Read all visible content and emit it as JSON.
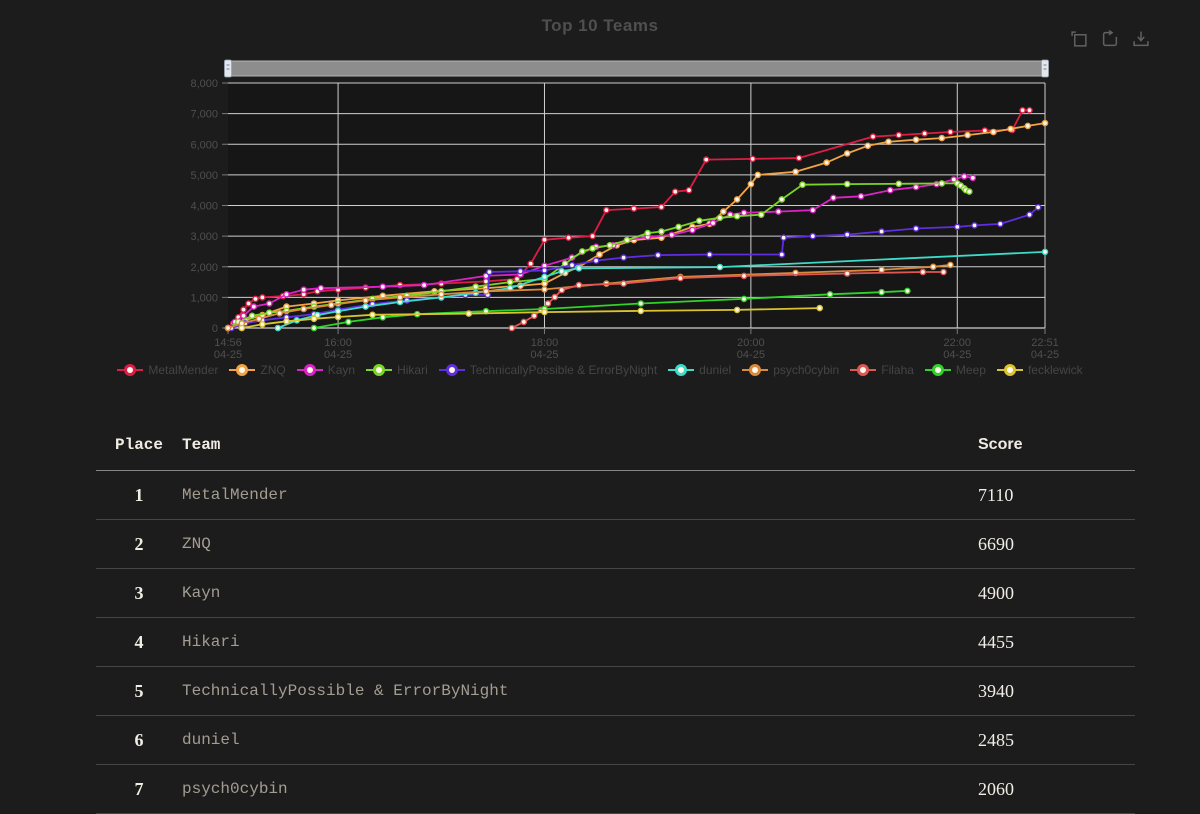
{
  "chart_data": {
    "type": "line",
    "title": "Top 10 Teams",
    "xlabel": "",
    "ylabel": "",
    "x_unit": "minutes after 14:56 04-25",
    "x_range_minutes": 475,
    "ylim": [
      0,
      8000
    ],
    "grid": true,
    "legend_position": "bottom",
    "x_axis": {
      "labels": [
        {
          "time": "14:56",
          "date": "04-25",
          "minute": 0
        },
        {
          "time": "16:00",
          "date": "04-25",
          "minute": 64
        },
        {
          "time": "18:00",
          "date": "04-25",
          "minute": 184
        },
        {
          "time": "20:00",
          "date": "04-25",
          "minute": 304
        },
        {
          "time": "22:00",
          "date": "04-25",
          "minute": 424
        },
        {
          "time": "22:51",
          "date": "04-25",
          "minute": 475
        }
      ],
      "gridline_minutes": [
        64,
        184,
        304,
        424,
        475
      ]
    },
    "y_axis": {
      "min": 0,
      "max": 8000,
      "step": 1000,
      "tick_labels": [
        "0",
        "1,000",
        "2,000",
        "3,000",
        "4,000",
        "5,000",
        "6,000",
        "7,000",
        "8,000"
      ]
    },
    "series": [
      {
        "name": "MetalMender",
        "color": "#dc1e46",
        "final_score": 7110,
        "points": [
          [
            0,
            0
          ],
          [
            3,
            150
          ],
          [
            6,
            350
          ],
          [
            9,
            600
          ],
          [
            12,
            800
          ],
          [
            16,
            950
          ],
          [
            20,
            1000
          ],
          [
            32,
            1040
          ],
          [
            44,
            1100
          ],
          [
            52,
            1200
          ],
          [
            64,
            1250
          ],
          [
            80,
            1320
          ],
          [
            100,
            1400
          ],
          [
            124,
            1450
          ],
          [
            150,
            1520
          ],
          [
            168,
            1600
          ],
          [
            176,
            2100
          ],
          [
            184,
            2880
          ],
          [
            198,
            2950
          ],
          [
            212,
            3000
          ],
          [
            220,
            3850
          ],
          [
            236,
            3900
          ],
          [
            252,
            3950
          ],
          [
            260,
            4450
          ],
          [
            268,
            4500
          ],
          [
            278,
            5500
          ],
          [
            305,
            5520
          ],
          [
            332,
            5550
          ],
          [
            375,
            6250
          ],
          [
            390,
            6300
          ],
          [
            405,
            6350
          ],
          [
            420,
            6400
          ],
          [
            440,
            6450
          ],
          [
            456,
            6470
          ],
          [
            462,
            7110
          ],
          [
            466,
            7110
          ]
        ]
      },
      {
        "name": "ZNQ",
        "color": "#f2a444",
        "final_score": 6690,
        "points": [
          [
            0,
            0
          ],
          [
            5,
            120
          ],
          [
            10,
            250
          ],
          [
            20,
            420
          ],
          [
            34,
            700
          ],
          [
            50,
            800
          ],
          [
            64,
            900
          ],
          [
            90,
            1050
          ],
          [
            120,
            1200
          ],
          [
            150,
            1300
          ],
          [
            170,
            1380
          ],
          [
            184,
            1450
          ],
          [
            196,
            1800
          ],
          [
            204,
            2000
          ],
          [
            216,
            2400
          ],
          [
            226,
            2700
          ],
          [
            236,
            2870
          ],
          [
            252,
            2950
          ],
          [
            270,
            3300
          ],
          [
            280,
            3400
          ],
          [
            288,
            3800
          ],
          [
            296,
            4200
          ],
          [
            304,
            4700
          ],
          [
            308,
            5000
          ],
          [
            330,
            5100
          ],
          [
            348,
            5400
          ],
          [
            360,
            5700
          ],
          [
            372,
            5950
          ],
          [
            384,
            6080
          ],
          [
            400,
            6150
          ],
          [
            415,
            6200
          ],
          [
            430,
            6300
          ],
          [
            445,
            6400
          ],
          [
            455,
            6500
          ],
          [
            465,
            6600
          ],
          [
            475,
            6690
          ]
        ]
      },
      {
        "name": "Kayn",
        "color": "#dc23c8",
        "final_score": 4900,
        "points": [
          [
            0,
            0
          ],
          [
            4,
            200
          ],
          [
            9,
            400
          ],
          [
            15,
            700
          ],
          [
            24,
            800
          ],
          [
            34,
            1100
          ],
          [
            44,
            1250
          ],
          [
            54,
            1300
          ],
          [
            90,
            1350
          ],
          [
            114,
            1400
          ],
          [
            150,
            1700
          ],
          [
            170,
            1750
          ],
          [
            184,
            2030
          ],
          [
            200,
            2300
          ],
          [
            214,
            2650
          ],
          [
            224,
            2700
          ],
          [
            232,
            2870
          ],
          [
            244,
            2970
          ],
          [
            258,
            3040
          ],
          [
            270,
            3200
          ],
          [
            282,
            3430
          ],
          [
            292,
            3700
          ],
          [
            300,
            3760
          ],
          [
            320,
            3800
          ],
          [
            340,
            3850
          ],
          [
            352,
            4250
          ],
          [
            368,
            4300
          ],
          [
            385,
            4500
          ],
          [
            400,
            4600
          ],
          [
            412,
            4700
          ],
          [
            422,
            4850
          ],
          [
            428,
            4950
          ],
          [
            433,
            4900
          ]
        ]
      },
      {
        "name": "Hikari",
        "color": "#7ad626",
        "final_score": 4455,
        "points": [
          [
            0,
            0
          ],
          [
            6,
            200
          ],
          [
            14,
            400
          ],
          [
            24,
            500
          ],
          [
            34,
            560
          ],
          [
            50,
            700
          ],
          [
            64,
            800
          ],
          [
            84,
            950
          ],
          [
            104,
            1050
          ],
          [
            124,
            1200
          ],
          [
            144,
            1350
          ],
          [
            164,
            1500
          ],
          [
            184,
            1600
          ],
          [
            196,
            2100
          ],
          [
            206,
            2500
          ],
          [
            212,
            2600
          ],
          [
            222,
            2700
          ],
          [
            232,
            2870
          ],
          [
            244,
            3100
          ],
          [
            252,
            3150
          ],
          [
            262,
            3300
          ],
          [
            274,
            3500
          ],
          [
            286,
            3600
          ],
          [
            296,
            3650
          ],
          [
            310,
            3700
          ],
          [
            322,
            4200
          ],
          [
            334,
            4680
          ],
          [
            360,
            4700
          ],
          [
            390,
            4710
          ],
          [
            415,
            4720
          ],
          [
            424,
            4720
          ],
          [
            426,
            4650
          ],
          [
            428,
            4560
          ],
          [
            429,
            4500
          ],
          [
            431,
            4455
          ]
        ]
      },
      {
        "name": "TechnicallyPossible & ErrorByNight",
        "color": "#5f2ee0",
        "final_score": 3940,
        "points": [
          [
            2,
            0
          ],
          [
            10,
            150
          ],
          [
            20,
            250
          ],
          [
            34,
            350
          ],
          [
            50,
            450
          ],
          [
            64,
            600
          ],
          [
            84,
            780
          ],
          [
            104,
            900
          ],
          [
            124,
            1000
          ],
          [
            138,
            1080
          ],
          [
            151,
            1080
          ],
          [
            152,
            1830
          ],
          [
            170,
            1850
          ],
          [
            184,
            1880
          ],
          [
            200,
            2050
          ],
          [
            214,
            2200
          ],
          [
            230,
            2300
          ],
          [
            250,
            2380
          ],
          [
            280,
            2400
          ],
          [
            322,
            2400
          ],
          [
            323,
            2950
          ],
          [
            340,
            3000
          ],
          [
            360,
            3050
          ],
          [
            380,
            3150
          ],
          [
            400,
            3250
          ],
          [
            424,
            3300
          ],
          [
            434,
            3350
          ],
          [
            449,
            3400
          ],
          [
            466,
            3700
          ],
          [
            471,
            3940
          ]
        ]
      },
      {
        "name": "duniel",
        "color": "#3cdcc8",
        "final_score": 2485,
        "points": [
          [
            29,
            0
          ],
          [
            40,
            250
          ],
          [
            52,
            420
          ],
          [
            64,
            550
          ],
          [
            80,
            700
          ],
          [
            100,
            850
          ],
          [
            124,
            1000
          ],
          [
            144,
            1150
          ],
          [
            164,
            1300
          ],
          [
            184,
            1670
          ],
          [
            194,
            1850
          ],
          [
            204,
            1950
          ],
          [
            286,
            1990
          ],
          [
            475,
            2485
          ]
        ]
      },
      {
        "name": "psych0cybin",
        "color": "#d98a3a",
        "final_score": 2060,
        "points": [
          [
            0,
            0
          ],
          [
            8,
            150
          ],
          [
            18,
            300
          ],
          [
            30,
            480
          ],
          [
            44,
            620
          ],
          [
            60,
            750
          ],
          [
            80,
            900
          ],
          [
            100,
            1000
          ],
          [
            124,
            1100
          ],
          [
            150,
            1200
          ],
          [
            184,
            1260
          ],
          [
            220,
            1450
          ],
          [
            263,
            1670
          ],
          [
            330,
            1800
          ],
          [
            380,
            1900
          ],
          [
            410,
            2000
          ],
          [
            420,
            2060
          ]
        ]
      },
      {
        "name": "Filaha",
        "color": "#e25555",
        "final_score": 1830,
        "points": [
          [
            165,
            0
          ],
          [
            172,
            200
          ],
          [
            178,
            400
          ],
          [
            182,
            590
          ],
          [
            186,
            800
          ],
          [
            190,
            1010
          ],
          [
            194,
            1240
          ],
          [
            204,
            1400
          ],
          [
            230,
            1450
          ],
          [
            263,
            1630
          ],
          [
            300,
            1700
          ],
          [
            360,
            1780
          ],
          [
            404,
            1830
          ],
          [
            416,
            1830
          ]
        ]
      },
      {
        "name": "Meep",
        "color": "#30d428",
        "final_score": 1210,
        "points": [
          [
            50,
            0
          ],
          [
            70,
            200
          ],
          [
            90,
            350
          ],
          [
            110,
            450
          ],
          [
            150,
            550
          ],
          [
            184,
            620
          ],
          [
            240,
            800
          ],
          [
            300,
            950
          ],
          [
            350,
            1100
          ],
          [
            380,
            1170
          ],
          [
            395,
            1210
          ]
        ]
      },
      {
        "name": "fecklewick",
        "color": "#d9c430",
        "final_score": 650,
        "points": [
          [
            8,
            0
          ],
          [
            20,
            120
          ],
          [
            34,
            220
          ],
          [
            50,
            300
          ],
          [
            64,
            360
          ],
          [
            84,
            430
          ],
          [
            140,
            470
          ],
          [
            184,
            520
          ],
          [
            240,
            560
          ],
          [
            296,
            590
          ],
          [
            344,
            650
          ]
        ]
      }
    ]
  },
  "toolbox": {
    "icons": [
      "box-zoom-icon",
      "restore-icon",
      "download-icon"
    ]
  },
  "table": {
    "headers": {
      "place": "Place",
      "team": "Team",
      "score": "Score"
    },
    "rows": [
      {
        "place": "1",
        "team": "MetalMender",
        "score": "7110"
      },
      {
        "place": "2",
        "team": "ZNQ",
        "score": "6690"
      },
      {
        "place": "3",
        "team": "Kayn",
        "score": "4900"
      },
      {
        "place": "4",
        "team": "Hikari",
        "score": "4455"
      },
      {
        "place": "5",
        "team": "TechnicallyPossible & ErrorByNight",
        "score": "3940"
      },
      {
        "place": "6",
        "team": "duniel",
        "score": "2485"
      },
      {
        "place": "7",
        "team": "psych0cybin",
        "score": "2060"
      }
    ]
  }
}
